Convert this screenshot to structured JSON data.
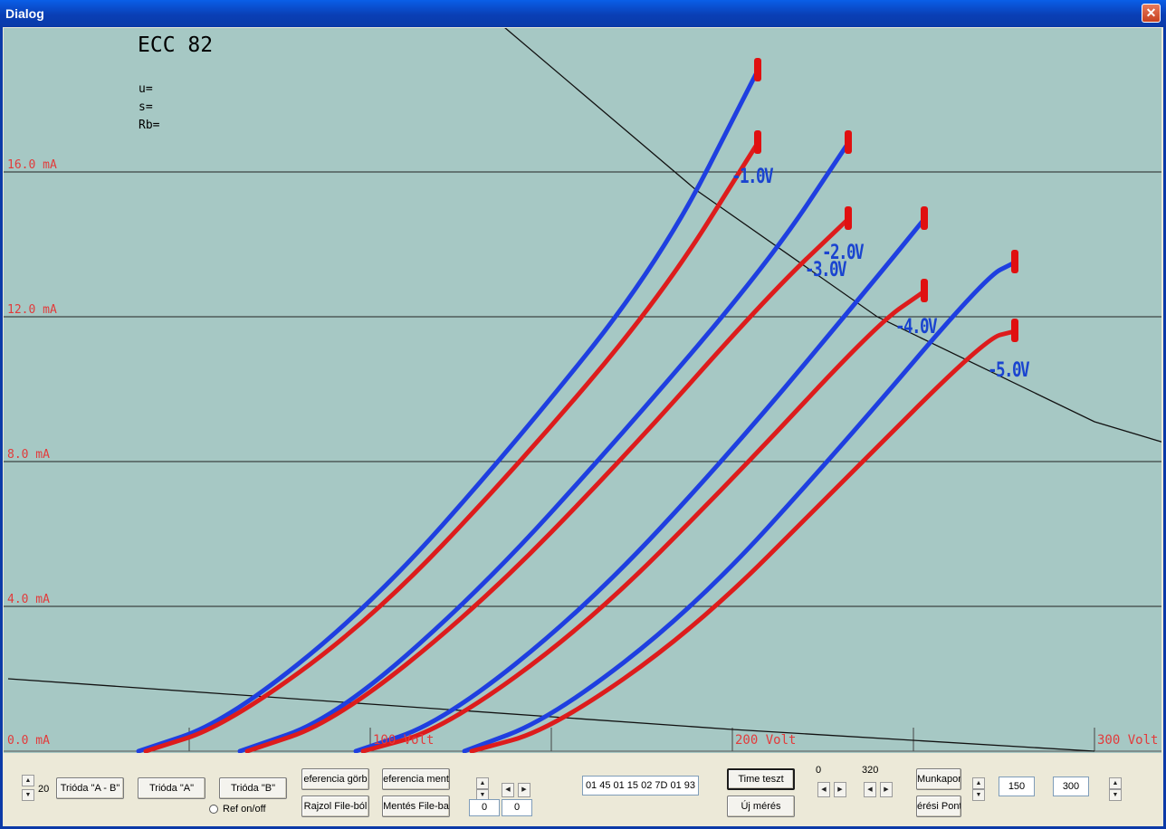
{
  "window": {
    "title": "Dialog",
    "close_glyph": "✕"
  },
  "plot": {
    "tube_name": "ECC 82",
    "params": [
      "u=",
      "s=",
      "Rb="
    ],
    "y_labels": [
      "16.0 mA",
      "12.0 mA",
      "8.0 mA",
      "4.0 mA",
      "0.0 mA"
    ],
    "x_labels": [
      "100 Volt",
      "200 Volt",
      "300 Volt"
    ],
    "grid_labels": [
      "-1.0V",
      "-2.0V",
      "-3.0V",
      "-4.0V",
      "-5.0V"
    ],
    "colors": {
      "background": "#a6c8c4",
      "series_a": "#1f3fe0",
      "series_b": "#dd1c1c",
      "axis_text": "#e23b3b"
    }
  },
  "chart_data": {
    "type": "line",
    "title": "ECC 82",
    "xlabel": "Volt",
    "ylabel": "mA",
    "xlim": [
      0,
      320
    ],
    "ylim": [
      0,
      20
    ],
    "grid": true,
    "series": [
      {
        "color": "blue",
        "points": [
          [
            36,
            0
          ],
          [
            60,
            0.8
          ],
          [
            100,
            4.0
          ],
          [
            140,
            8.5
          ],
          [
            180,
            13.5
          ],
          [
            207,
            18.8
          ]
        ]
      },
      {
        "color": "red",
        "points": [
          [
            38,
            0
          ],
          [
            60,
            0.7
          ],
          [
            100,
            3.6
          ],
          [
            140,
            7.8
          ],
          [
            180,
            12.5
          ],
          [
            207,
            16.8
          ]
        ]
      },
      {
        "color": "blue",
        "points": [
          [
            64,
            0
          ],
          [
            90,
            0.9
          ],
          [
            130,
            4.4
          ],
          [
            170,
            8.8
          ],
          [
            210,
            13.5
          ],
          [
            232,
            16.8
          ]
        ]
      },
      {
        "color": "red",
        "points": [
          [
            66,
            0
          ],
          [
            90,
            0.8
          ],
          [
            130,
            4.0
          ],
          [
            170,
            8.1
          ],
          [
            210,
            12.6
          ],
          [
            232,
            14.7
          ]
        ]
      },
      {
        "color": "blue",
        "points": [
          [
            96,
            0
          ],
          [
            120,
            0.8
          ],
          [
            160,
            4.0
          ],
          [
            200,
            8.3
          ],
          [
            240,
            13.1
          ],
          [
            253,
            14.7
          ]
        ]
      },
      {
        "color": "red",
        "points": [
          [
            98,
            0
          ],
          [
            120,
            0.6
          ],
          [
            160,
            3.5
          ],
          [
            200,
            7.5
          ],
          [
            240,
            11.8
          ],
          [
            253,
            12.7
          ]
        ]
      },
      {
        "color": "blue",
        "points": [
          [
            126,
            0
          ],
          [
            150,
            0.9
          ],
          [
            190,
            4.0
          ],
          [
            230,
            8.4
          ],
          [
            270,
            13.1
          ],
          [
            278,
            13.5
          ]
        ]
      },
      {
        "color": "red",
        "points": [
          [
            128,
            0
          ],
          [
            150,
            0.6
          ],
          [
            190,
            3.4
          ],
          [
            230,
            7.4
          ],
          [
            270,
            11.4
          ],
          [
            278,
            11.6
          ]
        ]
      }
    ],
    "load_lines": [
      {
        "name": "hyperbola",
        "points": [
          [
            137,
            20
          ],
          [
            190,
            15.5
          ],
          [
            240,
            12
          ],
          [
            300,
            9.1
          ],
          [
            320,
            8.5
          ]
        ]
      },
      {
        "name": "load_line",
        "points": [
          [
            0,
            2.0
          ],
          [
            100,
            1.3
          ],
          [
            200,
            0.6
          ],
          [
            300,
            0
          ]
        ]
      }
    ]
  },
  "controls": {
    "counter_value": "20",
    "trioda_ab": "Trióda \"A - B\"",
    "trioda_a": "Trióda  \"A\"",
    "trioda_b": "Trióda  \"B\"",
    "ref_onoff": "Ref on/off",
    "ref_gorbe": "eferencia görb",
    "ref_mentes": "eferencia ment",
    "rajzol_file": "Rajzol File-ból",
    "mentes_file": "Mentés File-ba",
    "offset_x": "0",
    "offset_y": "0",
    "hex_data": "01 45 01 15 02 7D 01 93",
    "time_teszt": "Time teszt",
    "uj_meres": "Új mérés",
    "range_min": "0",
    "range_max": "320",
    "munkapont": "Munkapon",
    "meresi_pont": "érési Pont",
    "value_150": "150",
    "value_300": "300",
    "arrow_up": "▲",
    "arrow_down": "▼",
    "arrow_left": "◀",
    "arrow_right": "▶"
  }
}
